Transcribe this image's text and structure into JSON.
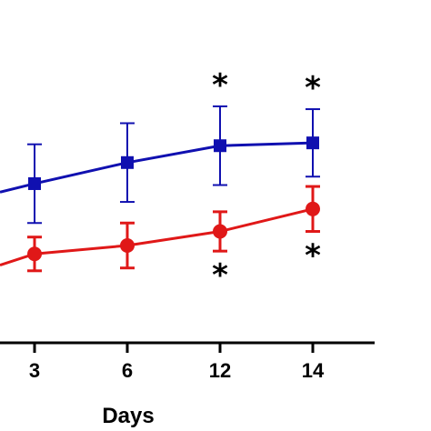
{
  "chart_data": {
    "type": "line",
    "xlabel": "Days",
    "ylabel": "",
    "categories": [
      "3",
      "6",
      "12",
      "14"
    ],
    "ylim": [
      0,
      100
    ],
    "grid": false,
    "legend": "none",
    "series": [
      {
        "color": "#1010b0",
        "marker": "square",
        "x_start_partial": true,
        "start_value": 52,
        "values": [
          55,
          62.5,
          68.5,
          69.5
        ],
        "errors": [
          14,
          14,
          14,
          12
        ],
        "significance": [
          "",
          "",
          "*",
          "*"
        ]
      },
      {
        "color": "#e01818",
        "marker": "circle",
        "x_start_partial": true,
        "start_value": 26,
        "values": [
          30,
          33,
          38,
          46
        ],
        "errors": [
          6,
          8,
          7,
          8
        ],
        "significance": [
          "",
          "",
          "*",
          "*"
        ]
      }
    ]
  }
}
